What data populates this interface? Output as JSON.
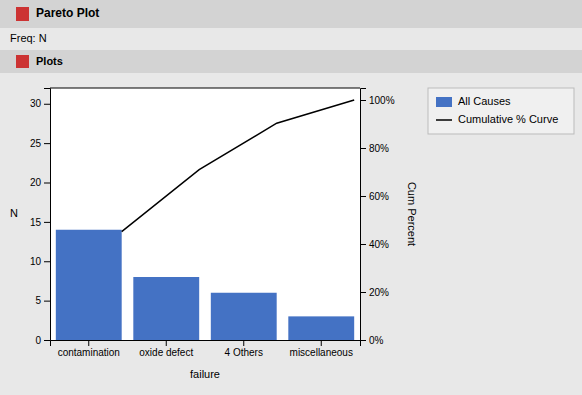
{
  "chart_data": {
    "type": "bar",
    "title": "Pareto Plot",
    "subtitle": "Freq: N",
    "annotations": [
      "Plots"
    ],
    "categories": [
      "contamination",
      "oxide defect",
      "4 Others",
      "miscellaneous"
    ],
    "series": [
      {
        "name": "All Causes",
        "type": "bar",
        "color": "#4472C4",
        "values": [
          14,
          8,
          6,
          3
        ]
      },
      {
        "name": "Cumulative % Curve",
        "type": "line",
        "color": "#000000",
        "axis": "y2",
        "values": [
          45.16129032258064,
          70.96774193548387,
          90.32258064516128,
          100
        ]
      }
    ],
    "xlabel": "failure",
    "ylabel": "N",
    "y2label": "Cum Percent",
    "ylim": [
      0,
      32
    ],
    "yticks": [
      0,
      5,
      10,
      15,
      20,
      25,
      30
    ],
    "y2lim": [
      0,
      105
    ],
    "y2ticks": [
      {
        "value": 0,
        "label": "0%"
      },
      {
        "value": 20,
        "label": "20%"
      },
      {
        "value": 40,
        "label": "40%"
      },
      {
        "value": 60,
        "label": "60%"
      },
      {
        "value": 80,
        "label": "80%"
      },
      {
        "value": 100,
        "label": "100%"
      }
    ],
    "grid": false,
    "legend": "right"
  }
}
